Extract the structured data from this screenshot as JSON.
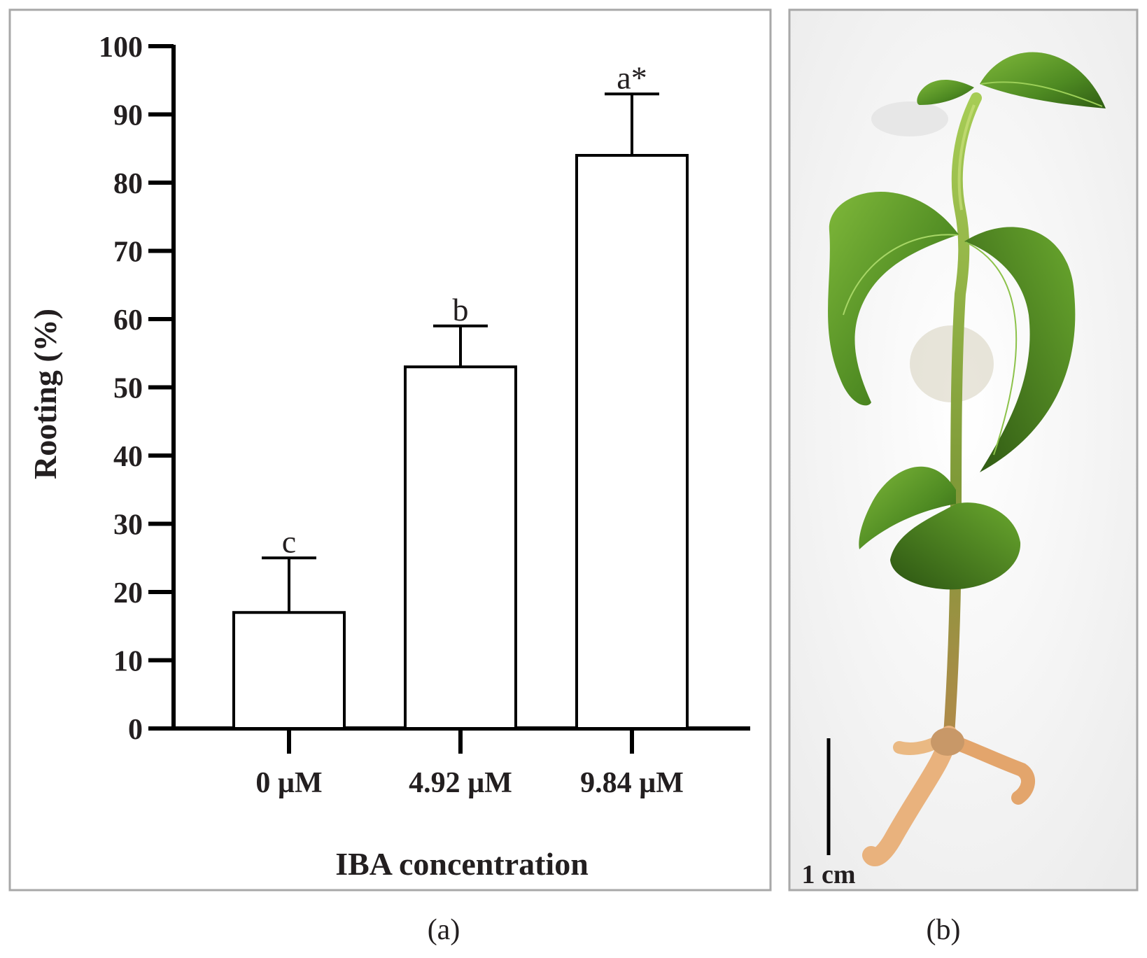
{
  "panels": {
    "a_label": "(a)",
    "b_label": "(b)"
  },
  "chart_data": {
    "type": "bar",
    "categories": [
      "0 µM",
      "4.92 µM",
      "9.84 µM"
    ],
    "values": [
      17,
      53,
      84
    ],
    "error_upper": [
      8,
      6,
      9
    ],
    "significance_letters": [
      "c",
      "b",
      "a*"
    ],
    "xlabel": "IBA concentration",
    "ylabel": "Rooting (%)",
    "ylim": [
      0,
      100
    ],
    "yticks": [
      0,
      10,
      20,
      30,
      40,
      50,
      60,
      70,
      80,
      90,
      100
    ],
    "bar_fill": "#ffffff",
    "bar_stroke": "#000000",
    "grid": false
  },
  "photo": {
    "scale_label": "1 cm",
    "colors": {
      "leaf": "#4e8a22",
      "leaf_dark": "#2f5c14",
      "stem": "#8aa83a",
      "root": "#e8b07a",
      "background": "#f4f4f4"
    }
  }
}
